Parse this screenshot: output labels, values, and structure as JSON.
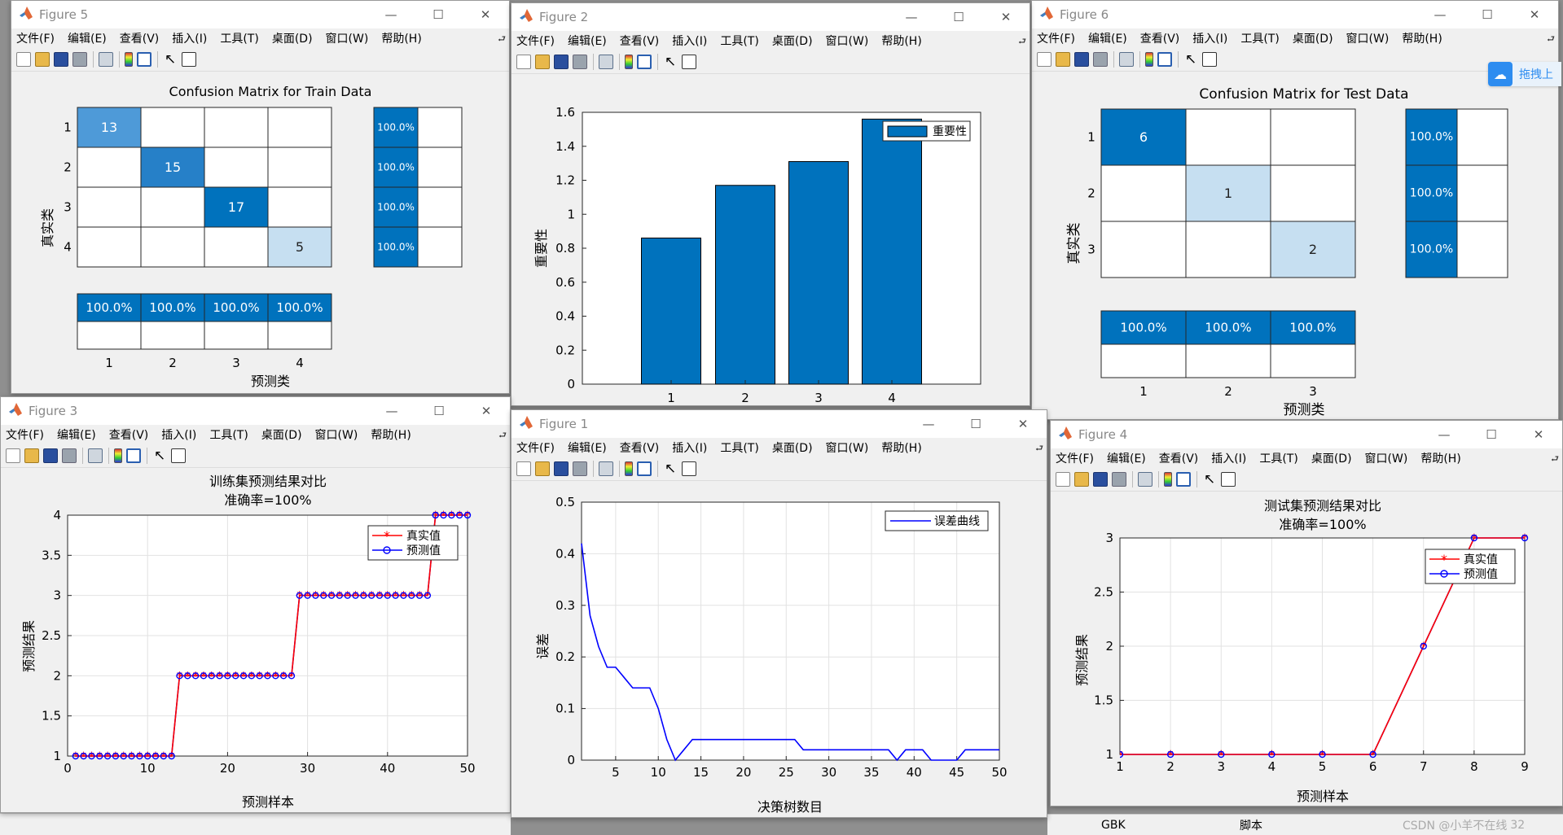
{
  "menu": [
    "文件(F)",
    "编辑(E)",
    "查看(V)",
    "插入(I)",
    "工具(T)",
    "桌面(D)",
    "窗口(W)",
    "帮助(H)"
  ],
  "win_controls": {
    "minimize": "—",
    "maximize": "☐",
    "close": "✕"
  },
  "fig5": {
    "title": "Figure 5",
    "chart_title": "Confusion Matrix for Train Data",
    "ylabel": "真实类",
    "xlabel": "预测类",
    "classes": [
      "1",
      "2",
      "3",
      "4"
    ],
    "diag": [
      "13",
      "15",
      "17",
      "5"
    ],
    "row_pct": [
      "100.0%",
      "100.0%",
      "100.0%",
      "100.0%"
    ],
    "col_pct": [
      "100.0%",
      "100.0%",
      "100.0%",
      "100.0%"
    ]
  },
  "fig2": {
    "title": "Figure 2",
    "yticks": [
      "0",
      "0.2",
      "0.4",
      "0.6",
      "0.8",
      "1",
      "1.2",
      "1.4",
      "1.6"
    ],
    "xticks": [
      "1",
      "2",
      "3",
      "4"
    ],
    "ylabel": "重要性",
    "legend": "重要性"
  },
  "fig6": {
    "title": "Figure 6",
    "chart_title": "Confusion Matrix for Test Data",
    "ylabel": "真实类",
    "xlabel": "预测类",
    "classes": [
      "1",
      "2",
      "3"
    ],
    "diag": [
      "6",
      "1",
      "2"
    ],
    "row_pct": [
      "100.0%",
      "100.0%",
      "100.0%"
    ],
    "col_pct": [
      "100.0%",
      "100.0%",
      "100.0%"
    ]
  },
  "fig3": {
    "title": "Figure 3",
    "chart_title": "训练集预测结果对比",
    "subtitle": "准确率=100%",
    "xlabel": "预测样本",
    "ylabel": "预测结果",
    "legend": [
      "真实值",
      "预测值"
    ],
    "yticks": [
      "1",
      "1.5",
      "2",
      "2.5",
      "3",
      "3.5",
      "4"
    ],
    "xticks": [
      "0",
      "10",
      "20",
      "30",
      "40",
      "50"
    ]
  },
  "fig1": {
    "title": "Figure 1",
    "xlabel": "决策树数目",
    "ylabel": "误差",
    "legend": "误差曲线",
    "yticks": [
      "0",
      "0.1",
      "0.2",
      "0.3",
      "0.4",
      "0.5"
    ],
    "xticks": [
      "5",
      "10",
      "15",
      "20",
      "25",
      "30",
      "35",
      "40",
      "45",
      "50"
    ]
  },
  "fig4": {
    "title": "Figure 4",
    "chart_title": "测试集预测结果对比",
    "subtitle": "准确率=100%",
    "xlabel": "预测样本",
    "ylabel": "预测结果",
    "legend": [
      "真实值",
      "预测值"
    ],
    "yticks": [
      "1",
      "1.5",
      "2",
      "2.5",
      "3"
    ],
    "xticks": [
      "1",
      "2",
      "3",
      "4",
      "5",
      "6",
      "7",
      "8",
      "9"
    ]
  },
  "side_button": "拖拽上",
  "statusbar": {
    "encoding": "GBK",
    "script": "脚本",
    "watermark": "CSDN @小羊不在线",
    "pos": "32"
  },
  "chart_data": [
    {
      "name": "fig5",
      "type": "heatmap",
      "title": "Confusion Matrix for Train Data",
      "xlabel": "预测类",
      "ylabel": "真实类",
      "categories": [
        "1",
        "2",
        "3",
        "4"
      ],
      "matrix": [
        [
          13,
          0,
          0,
          0
        ],
        [
          0,
          15,
          0,
          0
        ],
        [
          0,
          0,
          17,
          0
        ],
        [
          0,
          0,
          0,
          5
        ]
      ],
      "row_summary": [
        "100.0%",
        "100.0%",
        "100.0%",
        "100.0%"
      ],
      "col_summary": [
        "100.0%",
        "100.0%",
        "100.0%",
        "100.0%"
      ]
    },
    {
      "name": "fig2",
      "type": "bar",
      "categories": [
        "1",
        "2",
        "3",
        "4"
      ],
      "values": [
        0.86,
        1.17,
        1.31,
        1.56
      ],
      "ylabel": "重要性",
      "ylim": [
        0,
        1.6
      ],
      "legend": "重要性",
      "legend_position": "top-right",
      "color": "#0072BD"
    },
    {
      "name": "fig6",
      "type": "heatmap",
      "title": "Confusion Matrix for Test Data",
      "xlabel": "预测类",
      "ylabel": "真实类",
      "categories": [
        "1",
        "2",
        "3"
      ],
      "matrix": [
        [
          6,
          0,
          0
        ],
        [
          0,
          1,
          0
        ],
        [
          0,
          0,
          2
        ]
      ],
      "row_summary": [
        "100.0%",
        "100.0%",
        "100.0%"
      ],
      "col_summary": [
        "100.0%",
        "100.0%",
        "100.0%"
      ]
    },
    {
      "name": "fig3",
      "type": "line",
      "title": "训练集预测结果对比",
      "subtitle": "准确率=100%",
      "xlabel": "预测样本",
      "ylabel": "预测结果",
      "xlim": [
        0,
        50
      ],
      "ylim": [
        1,
        4
      ],
      "grid": true,
      "legend_position": "top-right",
      "x": [
        1,
        2,
        3,
        4,
        5,
        6,
        7,
        8,
        9,
        10,
        11,
        12,
        13,
        14,
        15,
        16,
        17,
        18,
        19,
        20,
        21,
        22,
        23,
        24,
        25,
        26,
        27,
        28,
        29,
        30,
        31,
        32,
        33,
        34,
        35,
        36,
        37,
        38,
        39,
        40,
        41,
        42,
        43,
        44,
        45,
        46,
        47,
        48,
        49,
        50
      ],
      "series": [
        {
          "name": "真实值",
          "color": "#FF0000",
          "marker": "*",
          "values": [
            1,
            1,
            1,
            1,
            1,
            1,
            1,
            1,
            1,
            1,
            1,
            1,
            1,
            2,
            2,
            2,
            2,
            2,
            2,
            2,
            2,
            2,
            2,
            2,
            2,
            2,
            2,
            2,
            3,
            3,
            3,
            3,
            3,
            3,
            3,
            3,
            3,
            3,
            3,
            3,
            3,
            3,
            3,
            3,
            3,
            4,
            4,
            4,
            4,
            4
          ]
        },
        {
          "name": "预测值",
          "color": "#0000FF",
          "marker": "o",
          "values": [
            1,
            1,
            1,
            1,
            1,
            1,
            1,
            1,
            1,
            1,
            1,
            1,
            1,
            2,
            2,
            2,
            2,
            2,
            2,
            2,
            2,
            2,
            2,
            2,
            2,
            2,
            2,
            2,
            3,
            3,
            3,
            3,
            3,
            3,
            3,
            3,
            3,
            3,
            3,
            3,
            3,
            3,
            3,
            3,
            3,
            4,
            4,
            4,
            4,
            4
          ]
        }
      ]
    },
    {
      "name": "fig1",
      "type": "line",
      "xlabel": "决策树数目",
      "ylabel": "误差",
      "xlim": [
        1,
        50
      ],
      "ylim": [
        0,
        0.5
      ],
      "grid": true,
      "legend_position": "top-right",
      "x": [
        1,
        2,
        3,
        4,
        5,
        6,
        7,
        8,
        9,
        10,
        11,
        12,
        13,
        14,
        15,
        16,
        17,
        18,
        19,
        20,
        21,
        22,
        23,
        24,
        25,
        26,
        27,
        28,
        29,
        30,
        31,
        32,
        33,
        34,
        35,
        36,
        37,
        38,
        39,
        40,
        41,
        42,
        43,
        44,
        45,
        46,
        47,
        48,
        49,
        50
      ],
      "series": [
        {
          "name": "误差曲线",
          "color": "#0000FF",
          "values": [
            0.42,
            0.28,
            0.22,
            0.18,
            0.18,
            0.16,
            0.14,
            0.14,
            0.14,
            0.1,
            0.04,
            0,
            0.02,
            0.04,
            0.04,
            0.04,
            0.04,
            0.04,
            0.04,
            0.04,
            0.04,
            0.04,
            0.04,
            0.04,
            0.04,
            0.04,
            0.02,
            0.02,
            0.02,
            0.02,
            0.02,
            0.02,
            0.02,
            0.02,
            0.02,
            0.02,
            0.02,
            0,
            0.02,
            0.02,
            0.02,
            0,
            0,
            0,
            0,
            0.02,
            0.02,
            0.02,
            0.02,
            0.02
          ]
        }
      ]
    },
    {
      "name": "fig4",
      "type": "line",
      "title": "测试集预测结果对比",
      "subtitle": "准确率=100%",
      "xlabel": "预测样本",
      "ylabel": "预测结果",
      "xlim": [
        1,
        9
      ],
      "ylim": [
        1,
        3
      ],
      "grid": true,
      "legend_position": "top-right",
      "x": [
        1,
        2,
        3,
        4,
        5,
        6,
        7,
        8,
        9
      ],
      "series": [
        {
          "name": "真实值",
          "color": "#FF0000",
          "marker": "*",
          "values": [
            1,
            1,
            1,
            1,
            1,
            1,
            2,
            3,
            3
          ]
        },
        {
          "name": "预测值",
          "color": "#0000FF",
          "marker": "o",
          "values": [
            1,
            1,
            1,
            1,
            1,
            1,
            2,
            3,
            3
          ]
        }
      ]
    }
  ]
}
